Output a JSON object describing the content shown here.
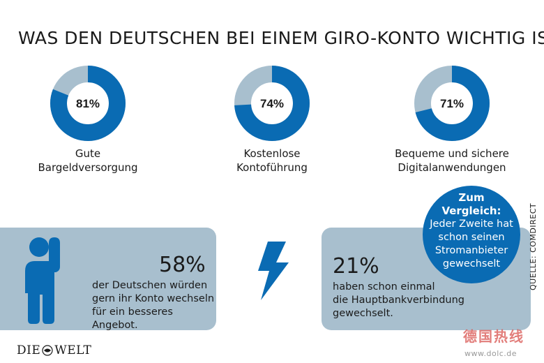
{
  "title": "WAS DEN DEUTSCHEN BEI EINEM GIRO-KONTO WICHTIG IST",
  "chart_data": {
    "type": "pie",
    "title": "WAS DEN DEUTSCHEN BEI EINEM GIRO-KONTO WICHTIG IST",
    "categories": [
      "Gute Bargeldversorgung",
      "Kostenlose Kontoführung",
      "Bequeme und sichere Digitalanwendungen"
    ],
    "values": [
      81,
      74,
      71
    ],
    "unit": "%"
  },
  "donuts": [
    {
      "value_label": "81%",
      "label_line1": "Gute",
      "label_line2": "Bargeldversorgung"
    },
    {
      "value_label": "74%",
      "label_line1": "Kostenlose",
      "label_line2": "Kontoführung"
    },
    {
      "value_label": "71%",
      "label_line1": "Bequeme und sichere",
      "label_line2": "Digitalanwendungen"
    }
  ],
  "colors": {
    "primary": "#0a6bb3",
    "remainder": "#a8bfce",
    "panel": "#a8bfce"
  },
  "stat_left": {
    "value": "58%",
    "line1": "der Deutschen würden",
    "line2": "gern ihr Konto wechseln",
    "line3": "für ein besseres Angebot."
  },
  "stat_right": {
    "value": "21%",
    "line1": "haben schon einmal",
    "line2": "die Hauptbankverbindung",
    "line3": "gewechselt."
  },
  "badge": {
    "heading1": "Zum",
    "heading2": "Vergleich:",
    "line1": "Jeder Zweite hat",
    "line2": "schon seinen",
    "line3": "Stromanbieter",
    "line4": "gewechselt"
  },
  "source": "QUELLE: COMDIRECT",
  "logo": {
    "part1": "DIE",
    "part2": "WELT"
  },
  "icons": [
    "person-raising-hand-icon",
    "lightning-bolt-icon",
    "globe-emblem-icon"
  ],
  "watermark": {
    "text": "德国热线",
    "url": "www.dolc.de"
  }
}
